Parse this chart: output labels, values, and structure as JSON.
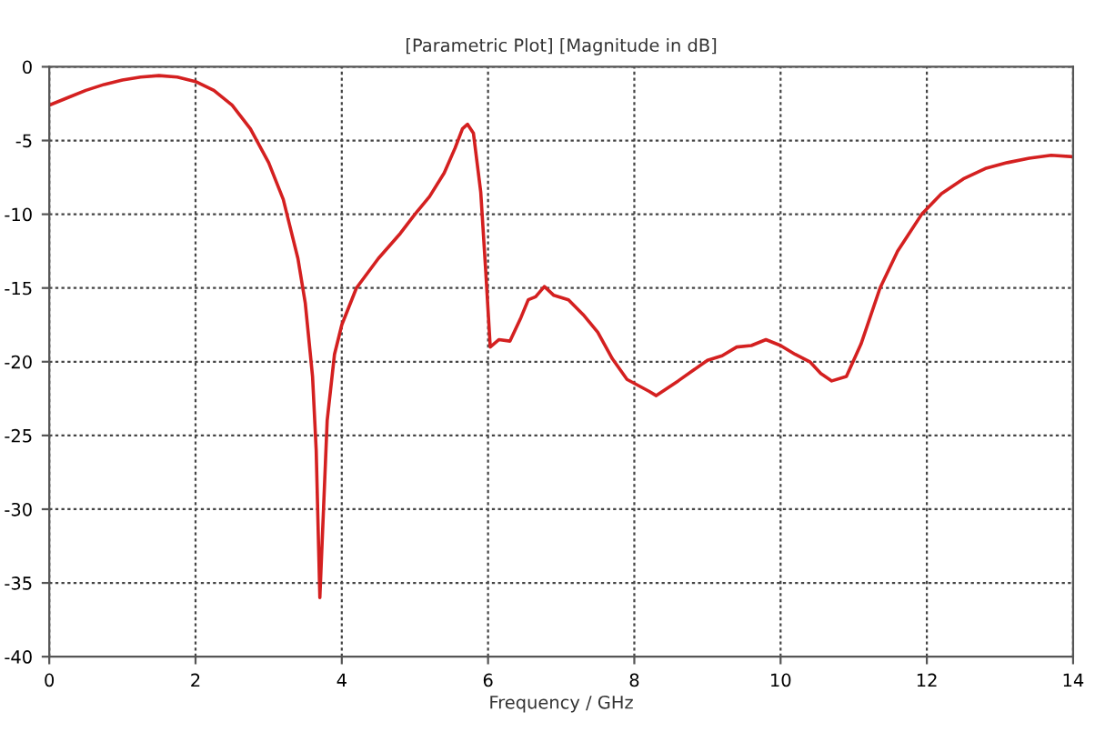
{
  "chart_data": {
    "type": "line",
    "title": "[Parametric Plot] [Magnitude in dB]",
    "xlabel": "Frequency / GHz",
    "series": [
      {
        "color": "#d42020",
        "x": [
          0,
          0.25,
          0.5,
          0.75,
          1.0,
          1.25,
          1.5,
          1.75,
          2.0,
          2.25,
          2.5,
          2.75,
          3.0,
          3.2,
          3.4,
          3.5,
          3.6,
          3.65,
          3.7,
          3.75,
          3.8,
          3.9,
          4.0,
          4.2,
          4.5,
          4.8,
          5.0,
          5.2,
          5.4,
          5.55,
          5.65,
          5.72,
          5.8,
          5.9,
          5.97,
          6.03,
          6.15,
          6.3,
          6.45,
          6.55,
          6.65,
          6.77,
          6.9,
          7.1,
          7.3,
          7.5,
          7.7,
          7.9,
          8.05,
          8.2,
          8.3,
          8.45,
          8.6,
          8.8,
          9.0,
          9.2,
          9.4,
          9.6,
          9.8,
          10.0,
          10.2,
          10.4,
          10.55,
          10.7,
          10.9,
          11.1,
          11.36,
          11.6,
          11.93,
          12.2,
          12.5,
          12.8,
          13.1,
          13.4,
          13.7,
          14.0
        ],
        "values": [
          -2.6,
          -2.1,
          -1.6,
          -1.2,
          -0.9,
          -0.7,
          -0.6,
          -0.7,
          -1.0,
          -1.6,
          -2.6,
          -4.2,
          -6.5,
          -9.0,
          -13.0,
          -16.0,
          -21.0,
          -26.0,
          -36.0,
          -30.0,
          -24.0,
          -19.5,
          -17.5,
          -15.0,
          -13.0,
          -11.3,
          -10.0,
          -8.8,
          -7.2,
          -5.5,
          -4.2,
          -3.9,
          -4.5,
          -8.5,
          -14.0,
          -19.0,
          -18.5,
          -18.6,
          -17.0,
          -15.8,
          -15.6,
          -14.9,
          -15.5,
          -15.8,
          -16.8,
          -18.0,
          -19.8,
          -21.2,
          -21.6,
          -22.0,
          -22.3,
          -21.8,
          -21.3,
          -20.6,
          -19.9,
          -19.6,
          -19.0,
          -18.9,
          -18.5,
          -18.9,
          -19.5,
          -20.0,
          -20.8,
          -21.3,
          -21.0,
          -18.8,
          -15.0,
          -12.5,
          -10.0,
          -8.6,
          -7.6,
          -6.9,
          -6.5,
          -6.2,
          -6.0,
          -6.1
        ]
      }
    ],
    "xlim": [
      0,
      14
    ],
    "ylim": [
      -40,
      0
    ],
    "xticks": [
      0,
      2,
      4,
      6,
      8,
      10,
      12,
      14
    ],
    "yticks": [
      -40,
      -35,
      -30,
      -25,
      -20,
      -15,
      -10,
      -5,
      0
    ],
    "grid": true,
    "marker": "none",
    "line_style": "solid"
  }
}
